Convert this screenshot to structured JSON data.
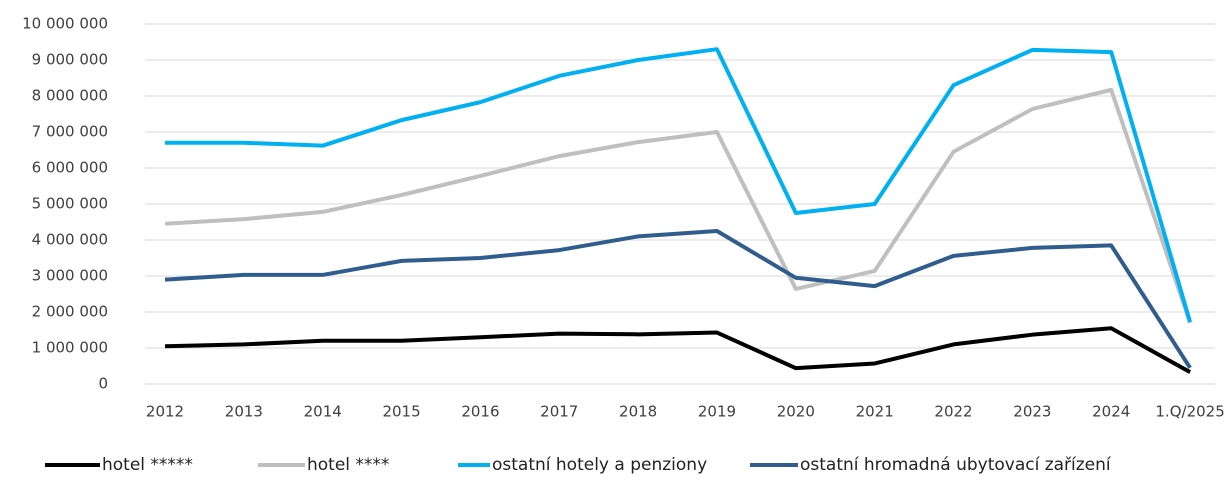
{
  "chart_data": {
    "type": "line",
    "categories": [
      "2012",
      "2013",
      "2014",
      "2015",
      "2016",
      "2017",
      "2018",
      "2019",
      "2020",
      "2021",
      "2022",
      "2023",
      "2024",
      "1.Q/2025"
    ],
    "series": [
      {
        "name": "hotel *****",
        "color": "#000000",
        "values": [
          1050000,
          1100000,
          1200000,
          1200000,
          1300000,
          1400000,
          1380000,
          1430000,
          440000,
          570000,
          1100000,
          1370000,
          1550000,
          330000
        ]
      },
      {
        "name": "hotel ****",
        "color": "#bfbfbf",
        "values": [
          4450000,
          4580000,
          4780000,
          5250000,
          5780000,
          6330000,
          6720000,
          7000000,
          2640000,
          3140000,
          6450000,
          7640000,
          8170000,
          1700000
        ]
      },
      {
        "name": "ostatní hotely a penziony",
        "color": "#00b0f0",
        "values": [
          6700000,
          6700000,
          6620000,
          7330000,
          7830000,
          8560000,
          9000000,
          9300000,
          4750000,
          5000000,
          8300000,
          9280000,
          9220000,
          1720000
        ]
      },
      {
        "name": "ostatní hromadná ubytovací zařízení",
        "color": "#2f5d8e",
        "values": [
          2900000,
          3030000,
          3030000,
          3420000,
          3500000,
          3720000,
          4100000,
          4250000,
          2950000,
          2720000,
          3560000,
          3780000,
          3850000,
          450000
        ]
      }
    ],
    "ylim": [
      0,
      10000000
    ],
    "yticks": [
      0,
      {
        "value": 1000000,
        "label": "1 000 000"
      },
      {
        "value": 2000000,
        "label": "2 000 000"
      },
      {
        "value": 3000000,
        "label": "3 000 000"
      },
      {
        "value": 4000000,
        "label": "4 000 000"
      },
      {
        "value": 5000000,
        "label": "5 000 000"
      },
      {
        "value": 6000000,
        "label": "6 000 000"
      },
      {
        "value": 7000000,
        "label": "7 000 000"
      },
      {
        "value": 8000000,
        "label": "8 000 000"
      },
      {
        "value": 9000000,
        "label": "9 000 000"
      },
      {
        "value": 10000000,
        "label": "10 000 000"
      }
    ],
    "grid": true,
    "legend": "bottom"
  }
}
